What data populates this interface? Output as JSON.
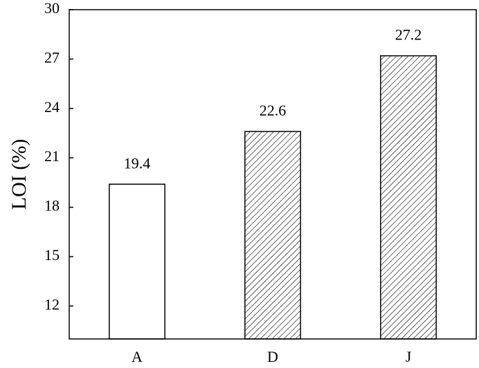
{
  "chart_data": {
    "type": "bar",
    "y_label": "LOI (%)",
    "categories": [
      "A",
      "D",
      "J"
    ],
    "values": [
      19.4,
      22.6,
      27.2
    ],
    "hatch": [
      false,
      true,
      true
    ],
    "color": "#000000",
    "ylim": [
      10,
      30
    ],
    "yticks": [
      12,
      15,
      18,
      21,
      24,
      27,
      30
    ],
    "grid": false
  }
}
